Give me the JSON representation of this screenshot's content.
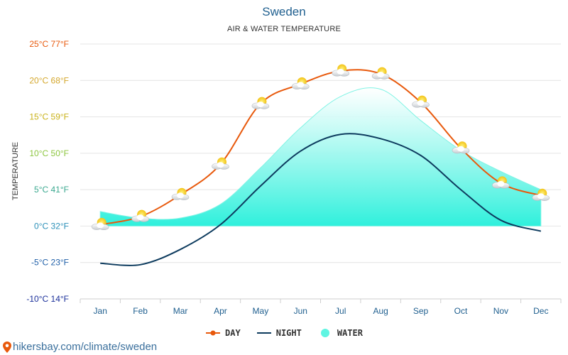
{
  "header": {
    "title": "Sweden",
    "subtitle": "AIR & WATER TEMPERATURE"
  },
  "footer": {
    "url": "hikersbay.com/climate/sweden",
    "icon": "location-pin-icon"
  },
  "chart_data": {
    "type": "line",
    "title": "Sweden",
    "subtitle": "AIR & WATER TEMPERATURE",
    "ylabel": "TEMPERATURE",
    "xlabel": "",
    "ylim": [
      -10,
      25
    ],
    "grid": true,
    "legend_position": "bottom-center",
    "categories": [
      "Jan",
      "Feb",
      "Mar",
      "Apr",
      "May",
      "Jun",
      "Jul",
      "Aug",
      "Sep",
      "Oct",
      "Nov",
      "Dec"
    ],
    "y_ticks": [
      {
        "value": 25,
        "label": "25°C 77°F",
        "color": "#e8590c"
      },
      {
        "value": 20,
        "label": "20°C 68°F",
        "color": "#d4a72c"
      },
      {
        "value": 15,
        "label": "15°C 59°F",
        "color": "#c9b21a"
      },
      {
        "value": 10,
        "label": "10°C 50°F",
        "color": "#8cc63f"
      },
      {
        "value": 5,
        "label": "5°C 41°F",
        "color": "#3aa88f"
      },
      {
        "value": 0,
        "label": "0°C 32°F",
        "color": "#2a8fb8"
      },
      {
        "value": -5,
        "label": "-5°C 23°F",
        "color": "#1f5fa8"
      },
      {
        "value": -10,
        "label": "-10°C 14°F",
        "color": "#1a2f9a"
      }
    ],
    "series": [
      {
        "name": "DAY",
        "color": "#e8590c",
        "values": [
          0.2,
          1.3,
          4.3,
          8.5,
          16.8,
          19.5,
          21.3,
          20.9,
          17.0,
          10.7,
          5.9,
          4.2
        ]
      },
      {
        "name": "NIGHT",
        "color": "#0d3b5e",
        "values": [
          -5.1,
          -5.3,
          -3.2,
          0.2,
          5.5,
          10.3,
          12.6,
          12.0,
          9.7,
          5.0,
          0.8,
          -0.7
        ]
      },
      {
        "name": "WATER",
        "color": "#5ff5e2",
        "values": [
          2.0,
          1.1,
          1.1,
          3.0,
          8.0,
          13.5,
          17.8,
          18.8,
          14.5,
          10.4,
          7.5,
          5.0
        ]
      }
    ],
    "weather_icons": [
      "sun-cloud-icon",
      "sun-cloud-icon",
      "sun-cloud-icon",
      "sun-cloud-icon",
      "sun-cloud-icon",
      "sun-cloud-icon",
      "sun-cloud-icon",
      "sun-cloud-icon",
      "sun-cloud-icon",
      "sun-cloud-icon",
      "sun-cloud-icon",
      "sun-cloud-icon"
    ]
  }
}
